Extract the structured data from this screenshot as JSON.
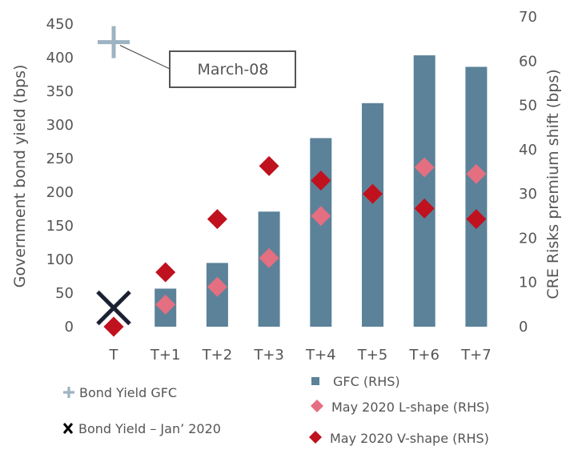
{
  "chart_data": {
    "type": "bar",
    "categories": [
      "T",
      "T+1",
      "T+2",
      "T+3",
      "T+4",
      "T+5",
      "T+6",
      "T+7"
    ],
    "ylabel_left": "Government bond yield (bps)",
    "ylabel_right": "CRE Risks premium shift (bps)",
    "ylim_left": [
      0,
      450
    ],
    "ylim_right": [
      0,
      70
    ],
    "yticks_left": [
      0,
      50,
      100,
      150,
      200,
      250,
      300,
      350,
      400,
      450
    ],
    "yticks_right": [
      0,
      10,
      20,
      30,
      40,
      50,
      60,
      70
    ],
    "grid": false,
    "series": [
      {
        "name": "GFC (RHS)",
        "type": "bar",
        "axis": "right",
        "color": "#5b8299",
        "values": [
          null,
          8.6,
          14.4,
          26,
          42.6,
          50.5,
          61.3,
          58.7
        ]
      },
      {
        "name": "May 2020 L-shape  (RHS)",
        "type": "marker",
        "marker": "diamond",
        "axis": "right",
        "color": "#e36f80",
        "values": [
          0,
          5,
          9,
          15.5,
          25,
          30,
          36,
          34.5
        ]
      },
      {
        "name": "May 2020 V-shape  (RHS)",
        "type": "marker",
        "marker": "diamond",
        "axis": "right",
        "color": "#c0111e",
        "values": [
          0,
          12.3,
          24.3,
          36.3,
          33,
          30,
          26.7,
          24.3
        ]
      },
      {
        "name": "Bond Yield GFC",
        "type": "marker",
        "marker": "plus",
        "axis": "left",
        "color": "#9db3c2",
        "points": [
          {
            "category": "T",
            "value": 423
          }
        ]
      },
      {
        "name": "Bond Yield – Jan’ 2020",
        "type": "marker",
        "marker": "x",
        "axis": "left",
        "color": "#1c2033",
        "points": [
          {
            "category": "T",
            "value": 28
          }
        ]
      }
    ],
    "annotations": [
      {
        "text": "March-08",
        "target_series": "Bond Yield GFC"
      }
    ],
    "legend": {
      "placement": "bottom",
      "items": [
        {
          "symbol": "+",
          "label": "Bond Yield GFC"
        },
        {
          "symbol": "X",
          "label": "Bond Yield – Jan’ 2020"
        },
        {
          "symbol": "square",
          "label": "GFC (RHS)"
        },
        {
          "symbol": "diamond-light",
          "label": "May 2020 L-shape  (RHS)"
        },
        {
          "symbol": "diamond-dark",
          "label": "May 2020 V-shape  (RHS)"
        }
      ]
    }
  }
}
